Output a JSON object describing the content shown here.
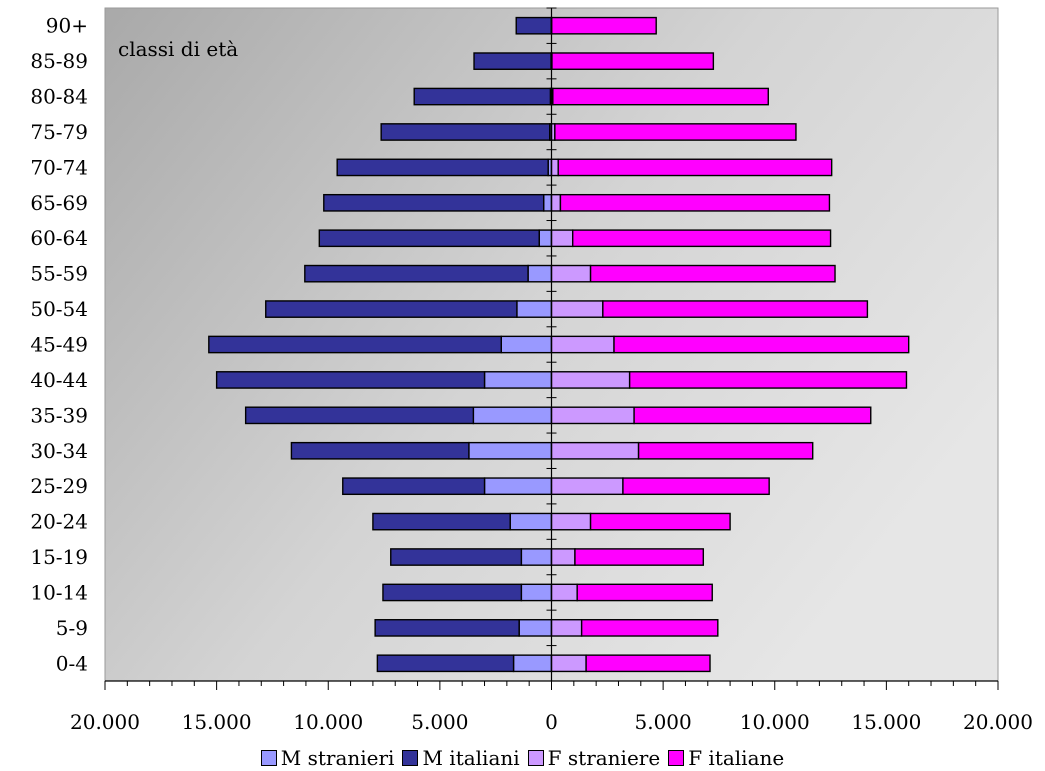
{
  "chart_data": {
    "type": "bar",
    "orientation": "horizontal",
    "annotation": "classi di età",
    "categories": [
      "0-4",
      "5-9",
      "10-14",
      "15-19",
      "20-24",
      "25-29",
      "30-34",
      "35-39",
      "40-44",
      "45-49",
      "50-54",
      "55-59",
      "60-64",
      "65-69",
      "70-74",
      "75-79",
      "80-84",
      "85-89",
      "90+"
    ],
    "series": [
      {
        "name": "M stranieri",
        "side": "left",
        "color": "#9999ff",
        "values": [
          1700,
          1450,
          1350,
          1350,
          1850,
          3000,
          3700,
          3500,
          3000,
          2250,
          1550,
          1050,
          550,
          350,
          150,
          80,
          50,
          20,
          10
        ]
      },
      {
        "name": "M italiani",
        "side": "left",
        "color": "#333399",
        "values": [
          6100,
          6450,
          6200,
          5850,
          6150,
          6350,
          7950,
          10200,
          12000,
          13100,
          11250,
          10000,
          9850,
          9850,
          9450,
          7550,
          6100,
          3450,
          1570
        ]
      },
      {
        "name": "F straniere",
        "side": "right",
        "color": "#cc99ff",
        "values": [
          1550,
          1350,
          1150,
          1050,
          1750,
          3200,
          3900,
          3700,
          3500,
          2800,
          2300,
          1750,
          950,
          400,
          300,
          150,
          60,
          20,
          10
        ]
      },
      {
        "name": "F italiane",
        "side": "right",
        "color": "#ff00ff",
        "values": [
          5550,
          6100,
          6050,
          5750,
          6250,
          6550,
          7800,
          10600,
          12400,
          13200,
          11850,
          10950,
          11550,
          12050,
          12250,
          10800,
          9650,
          7230,
          4680
        ]
      }
    ],
    "xlim": [
      -20000,
      20000
    ],
    "xticks": [
      {
        "value": -20000,
        "label": "20.000"
      },
      {
        "value": -15000,
        "label": "15.000"
      },
      {
        "value": -10000,
        "label": "10.000"
      },
      {
        "value": -5000,
        "label": "5.000"
      },
      {
        "value": 0,
        "label": "0"
      },
      {
        "value": 5000,
        "label": "5.000"
      },
      {
        "value": 10000,
        "label": "10.000"
      },
      {
        "value": 15000,
        "label": "15.000"
      },
      {
        "value": 20000,
        "label": "20.000"
      }
    ],
    "left_tick_label_color": "#ff0000",
    "right_tick_label_color": "#000000",
    "plot_background_gradient": [
      "#a9a9a9",
      "#e4e4e4"
    ],
    "legend_position": "bottom",
    "grid": false
  }
}
